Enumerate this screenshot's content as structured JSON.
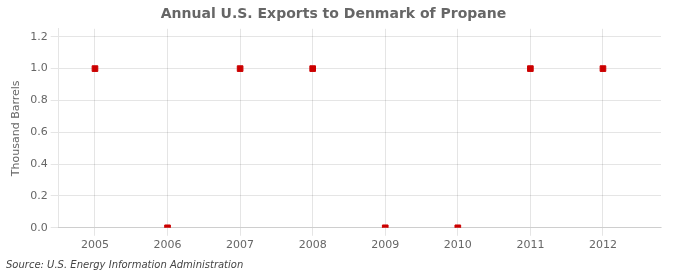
{
  "chart_data": {
    "type": "scatter",
    "title": "Annual U.S. Exports to Denmark of Propane",
    "ylabel": "Thousand Barrels",
    "annotation": "Source: U.S. Energy Information Administration",
    "x": [
      2005,
      2006,
      2007,
      2008,
      2009,
      2010,
      2011,
      2012
    ],
    "values": [
      1,
      0,
      1,
      1,
      0,
      0,
      1,
      1
    ],
    "color": "#cc0000",
    "marker": "square",
    "xlim": [
      2004.5,
      2012.8
    ],
    "ylim": [
      0.0,
      1.25
    ],
    "xticks": [
      2005,
      2006,
      2007,
      2008,
      2009,
      2010,
      2011,
      2012
    ],
    "yticks": [
      {
        "value": 0,
        "label": "0.0"
      },
      0.2,
      0.4,
      0.6,
      0.8,
      {
        "value": 1,
        "label": "1.0"
      },
      1.2
    ],
    "grid": true
  }
}
